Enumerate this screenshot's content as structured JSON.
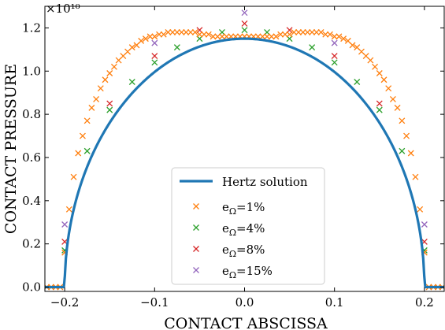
{
  "chart_data": {
    "type": "scatter",
    "xlabel": "CONTACT ABSCISSA",
    "ylabel": "CONTACT PRESSURE",
    "offset_text": "×10¹⁰",
    "xlim": [
      -0.222,
      0.222
    ],
    "ylim": [
      -0.02,
      1.3
    ],
    "x_ticks": [
      -0.2,
      -0.1,
      0.0,
      0.1,
      0.2
    ],
    "x_tick_labels": [
      "−0.2",
      "−0.1",
      "0.0",
      "0.1",
      "0.2"
    ],
    "y_ticks": [
      0.0,
      0.2,
      0.4,
      0.6,
      0.8,
      1.0,
      1.2
    ],
    "y_tick_labels": [
      "0.0",
      "0.2",
      "0.4",
      "0.6",
      "0.8",
      "1.0",
      "1.2"
    ],
    "grid": false,
    "legend_position": "lower-center",
    "colors": {
      "hertz": "#1f77b4",
      "e1": "#ff7f0e",
      "e4": "#2ca02c",
      "e8": "#d62728",
      "e15": "#9467bd"
    },
    "series": [
      {
        "name": "Hertz solution",
        "kind": "line",
        "color_key": "hertz",
        "peak": 1.15,
        "half_width": 0.2,
        "x_range": [
          -0.222,
          0.222
        ]
      },
      {
        "name": "e_Ω=1%",
        "legend_base": "e",
        "legend_sub": "Ω",
        "legend_value": "=1%",
        "kind": "marker",
        "color_key": "e1",
        "x": [
          -0.22,
          -0.215,
          -0.21,
          -0.205,
          -0.2,
          -0.195,
          -0.19,
          -0.185,
          -0.18,
          -0.175,
          -0.17,
          -0.165,
          -0.16,
          -0.155,
          -0.15,
          -0.145,
          -0.14,
          -0.135,
          -0.13,
          -0.125,
          -0.12,
          -0.115,
          -0.11,
          -0.105,
          -0.1,
          -0.095,
          -0.09,
          -0.085,
          -0.08,
          -0.075,
          -0.07,
          -0.065,
          -0.06,
          -0.055,
          -0.05,
          -0.045,
          -0.04,
          -0.035,
          -0.03,
          -0.025,
          -0.02,
          -0.015,
          -0.01,
          -0.005,
          0.0,
          0.005,
          0.01,
          0.015,
          0.02,
          0.025,
          0.03,
          0.035,
          0.04,
          0.045,
          0.05,
          0.055,
          0.06,
          0.065,
          0.07,
          0.075,
          0.08,
          0.085,
          0.09,
          0.095,
          0.1,
          0.105,
          0.11,
          0.115,
          0.12,
          0.125,
          0.13,
          0.135,
          0.14,
          0.145,
          0.15,
          0.155,
          0.16,
          0.165,
          0.17,
          0.175,
          0.18,
          0.185,
          0.19,
          0.195,
          0.2,
          0.205,
          0.21,
          0.215,
          0.22
        ],
        "y": [
          0.0,
          0.0,
          0.0,
          0.0,
          0.16,
          0.36,
          0.51,
          0.62,
          0.7,
          0.77,
          0.83,
          0.87,
          0.92,
          0.96,
          0.99,
          1.02,
          1.05,
          1.07,
          1.09,
          1.11,
          1.12,
          1.14,
          1.15,
          1.16,
          1.16,
          1.17,
          1.17,
          1.18,
          1.18,
          1.18,
          1.18,
          1.18,
          1.18,
          1.18,
          1.17,
          1.17,
          1.17,
          1.16,
          1.16,
          1.16,
          1.16,
          1.16,
          1.16,
          1.16,
          1.16,
          1.16,
          1.16,
          1.16,
          1.16,
          1.16,
          1.16,
          1.16,
          1.17,
          1.17,
          1.17,
          1.18,
          1.18,
          1.18,
          1.18,
          1.18,
          1.18,
          1.18,
          1.17,
          1.17,
          1.16,
          1.16,
          1.15,
          1.14,
          1.12,
          1.11,
          1.09,
          1.07,
          1.05,
          1.02,
          0.99,
          0.96,
          0.92,
          0.87,
          0.83,
          0.77,
          0.7,
          0.62,
          0.51,
          0.36,
          0.16,
          0.0,
          0.0,
          0.0,
          0.0
        ]
      },
      {
        "name": "e_Ω=4%",
        "legend_base": "e",
        "legend_sub": "Ω",
        "legend_value": "=4%",
        "kind": "marker",
        "color_key": "e4",
        "x": [
          -0.2,
          -0.175,
          -0.15,
          -0.125,
          -0.1,
          -0.075,
          -0.05,
          -0.025,
          0.0,
          0.025,
          0.05,
          0.075,
          0.1,
          0.125,
          0.15,
          0.175,
          0.2
        ],
        "y": [
          0.17,
          0.63,
          0.82,
          0.95,
          1.04,
          1.11,
          1.15,
          1.18,
          1.19,
          1.18,
          1.15,
          1.11,
          1.04,
          0.95,
          0.82,
          0.63,
          0.17
        ]
      },
      {
        "name": "e_Ω=8%",
        "legend_base": "e",
        "legend_sub": "Ω",
        "legend_value": "=8%",
        "kind": "marker",
        "color_key": "e8",
        "x": [
          -0.2,
          -0.15,
          -0.1,
          -0.05,
          0.0,
          0.05,
          0.1,
          0.15,
          0.2
        ],
        "y": [
          0.21,
          0.85,
          1.07,
          1.19,
          1.22,
          1.19,
          1.07,
          0.85,
          0.21
        ]
      },
      {
        "name": "e_Ω=15%",
        "legend_base": "e",
        "legend_sub": "Ω",
        "legend_value": "=15%",
        "kind": "marker",
        "color_key": "e15",
        "x": [
          -0.2,
          -0.1,
          0.0,
          0.1,
          0.2
        ],
        "y": [
          0.29,
          1.13,
          1.27,
          1.13,
          0.29
        ]
      }
    ]
  }
}
